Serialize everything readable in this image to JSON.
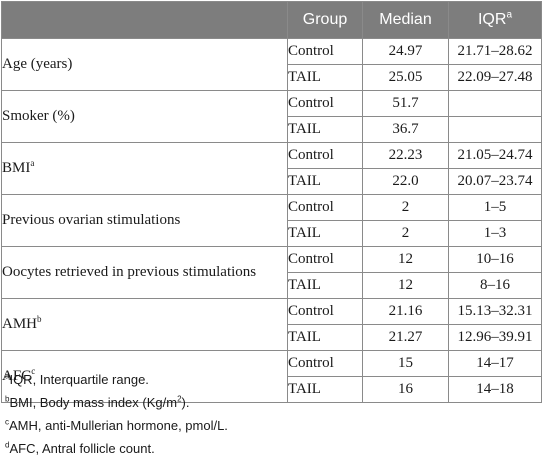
{
  "header": {
    "group": "Group",
    "median": "Median",
    "iqr": "IQR",
    "iqr_mark": "a"
  },
  "rows": [
    {
      "label": "Age (years)",
      "mark": "",
      "entries": [
        {
          "group": "Control",
          "median": "24.97",
          "iqr": "21.71–28.62"
        },
        {
          "group": "TAIL",
          "median": "25.05",
          "iqr": "22.09–27.48"
        }
      ]
    },
    {
      "label": "Smoker (%)",
      "mark": "",
      "entries": [
        {
          "group": "Control",
          "median": "51.7",
          "iqr": ""
        },
        {
          "group": "TAIL",
          "median": "36.7",
          "iqr": ""
        }
      ]
    },
    {
      "label": "BMI",
      "mark": "a",
      "entries": [
        {
          "group": "Control",
          "median": "22.23",
          "iqr": "21.05–24.74"
        },
        {
          "group": "TAIL",
          "median": "22.0",
          "iqr": "20.07–23.74"
        }
      ]
    },
    {
      "label": "Previous ovarian stimulations",
      "mark": "",
      "entries": [
        {
          "group": "Control",
          "median": "2",
          "iqr": "1–5"
        },
        {
          "group": "TAIL",
          "median": "2",
          "iqr": "1–3"
        }
      ]
    },
    {
      "label": "Oocytes retrieved in previous stimulations",
      "mark": "",
      "entries": [
        {
          "group": "Control",
          "median": "12",
          "iqr": "10–16"
        },
        {
          "group": "TAIL",
          "median": "12",
          "iqr": "8–16"
        }
      ]
    },
    {
      "label": "AMH",
      "mark": "b",
      "entries": [
        {
          "group": "Control",
          "median": "21.16",
          "iqr": "15.13–32.31"
        },
        {
          "group": "TAIL",
          "median": "21.27",
          "iqr": "12.96–39.91"
        }
      ]
    },
    {
      "label": "AFC",
      "mark": "c",
      "entries": [
        {
          "group": "Control",
          "median": "15",
          "iqr": "14–17"
        },
        {
          "group": "TAIL",
          "median": "16",
          "iqr": "14–18"
        }
      ]
    }
  ],
  "footnotes": [
    {
      "mark": "a",
      "pre": "IQR, Interquartile range.",
      "sup": "",
      "post": ""
    },
    {
      "mark": "b",
      "pre": "BMI, Body mass index (Kg/m",
      "sup": "2",
      "post": ")."
    },
    {
      "mark": "c",
      "pre": "AMH, anti-Mullerian hormone, pmol/L.",
      "sup": "",
      "post": ""
    },
    {
      "mark": "d",
      "pre": "AFC, Antral follicle count.",
      "sup": "",
      "post": ""
    }
  ]
}
